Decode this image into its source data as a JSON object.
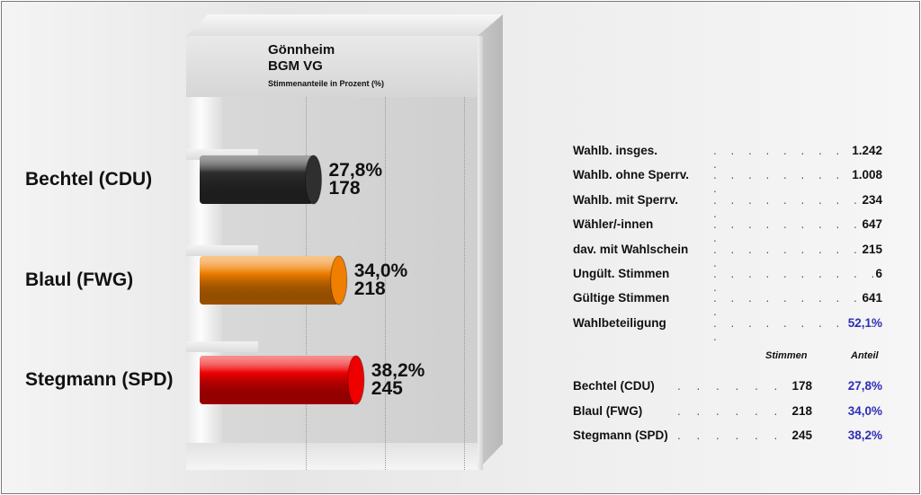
{
  "chart_data": {
    "type": "bar",
    "orientation": "horizontal",
    "title": "Gönnheim",
    "title2": "BGM VG",
    "subtitle": "Stimmenanteile in Prozent (%)",
    "categories": [
      "Bechtel (CDU)",
      "Blaul (FWG)",
      "Stegmann (SPD)"
    ],
    "values": [
      27.8,
      34.0,
      38.2
    ],
    "votes": [
      178,
      218,
      245
    ],
    "value_labels": [
      "27,8%",
      "34,0%",
      "38,2%"
    ],
    "vote_labels": [
      "178",
      "218",
      "245"
    ],
    "colors": [
      "#2f2f2f",
      "#f07f00",
      "#ee0000"
    ],
    "xlim": [
      0,
      100
    ],
    "grid": true
  },
  "stats": [
    {
      "label": "Wahlb. insges.",
      "value": "1.242"
    },
    {
      "label": "Wahlb. ohne Sperrv.",
      "value": "1.008"
    },
    {
      "label": "Wahlb. mit Sperrv.",
      "value": "234"
    },
    {
      "label": "Wähler/-innen",
      "value": "647"
    },
    {
      "label": "dav. mit Wahlschein",
      "value": "215"
    },
    {
      "label": "Ungült. Stimmen",
      "value": "6"
    },
    {
      "label": "Gültige Stimmen",
      "value": "641"
    },
    {
      "label": "Wahlbeteiligung",
      "value": "52,1%"
    }
  ],
  "results_header": {
    "stimmen": "Stimmen",
    "anteil": "Anteil"
  },
  "results": [
    {
      "name": "Bechtel (CDU)",
      "stimmen": "178",
      "anteil": "27,8%"
    },
    {
      "name": "Blaul (FWG)",
      "stimmen": "218",
      "anteil": "34,0%"
    },
    {
      "name": "Stegmann (SPD)",
      "stimmen": "245",
      "anteil": "38,2%"
    }
  ],
  "colors": {
    "accent": "#2e2eb8"
  }
}
